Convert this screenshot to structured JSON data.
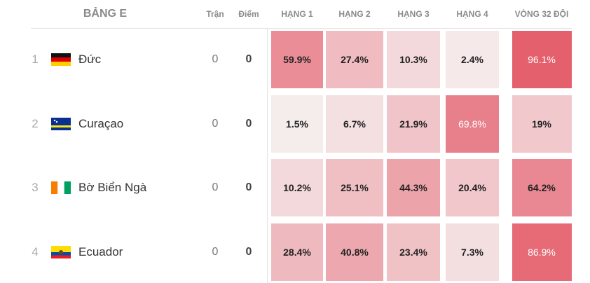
{
  "header": {
    "group": "BẢNG E",
    "columns": [
      "Trận",
      "Điểm",
      "HẠNG 1",
      "HẠNG 2",
      "HẠNG 3",
      "HẠNG 4",
      "VÒNG 32 ĐỘI"
    ]
  },
  "rows": [
    {
      "rank": "1",
      "team": "Đức",
      "played": "0",
      "points": "0",
      "odds": [
        "59.9%",
        "27.4%",
        "10.3%",
        "2.4%",
        "96.1%"
      ]
    },
    {
      "rank": "2",
      "team": "Curaçao",
      "played": "0",
      "points": "0",
      "odds": [
        "1.5%",
        "6.7%",
        "21.9%",
        "69.8%",
        "19%"
      ]
    },
    {
      "rank": "3",
      "team": "Bờ Biển Ngà",
      "played": "0",
      "points": "0",
      "odds": [
        "10.2%",
        "25.1%",
        "44.3%",
        "20.4%",
        "64.2%"
      ]
    },
    {
      "rank": "4",
      "team": "Ecuador",
      "played": "0",
      "points": "0",
      "odds": [
        "28.4%",
        "40.8%",
        "23.4%",
        "7.3%",
        "86.9%"
      ]
    }
  ]
}
